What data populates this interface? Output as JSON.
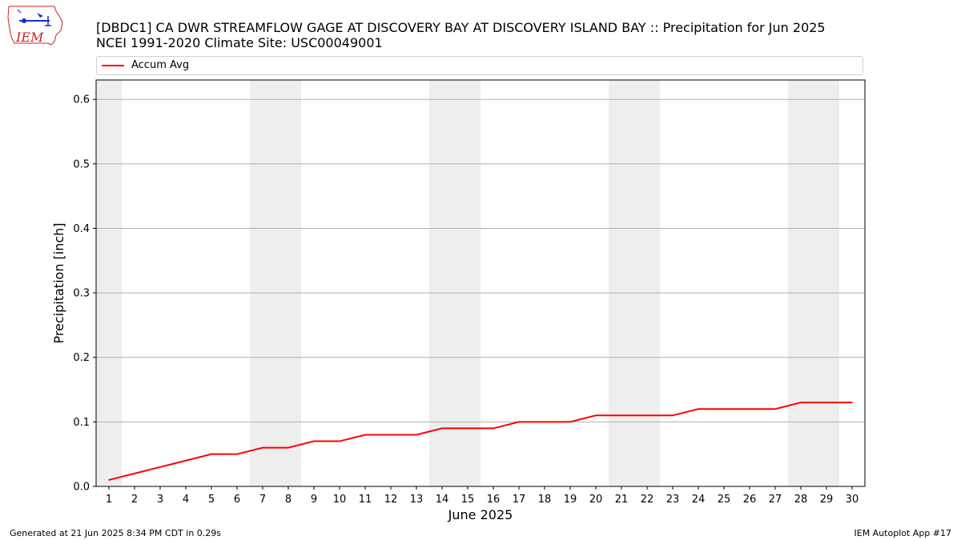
{
  "logo": {
    "text": "IEM",
    "color": "#cc2222",
    "icon": "iowa-state-outline-icon"
  },
  "header": {
    "title": "[DBDC1] CA DWR STREAMFLOW GAGE  AT DISCOVERY BAY AT DISCOVERY ISLAND BAY :: Precipitation for Jun 2025",
    "subtitle": "NCEI 1991-2020 Climate Site: USC00049001"
  },
  "legend": {
    "label": "Accum Avg",
    "color": "#ff0000"
  },
  "chart_data": {
    "type": "line",
    "xlabel": "June 2025",
    "ylabel": "Precipitation [inch]",
    "xlim": [
      0.5,
      30.5
    ],
    "ylim": [
      0,
      0.63
    ],
    "x_ticks": [
      1,
      2,
      3,
      4,
      5,
      6,
      7,
      8,
      9,
      10,
      11,
      12,
      13,
      14,
      15,
      16,
      17,
      18,
      19,
      20,
      21,
      22,
      23,
      24,
      25,
      26,
      27,
      28,
      29,
      30
    ],
    "y_ticks": [
      0.0,
      0.1,
      0.2,
      0.3,
      0.4,
      0.5,
      0.6
    ],
    "y_tick_labels": [
      "0.0",
      "0.1",
      "0.2",
      "0.3",
      "0.4",
      "0.5",
      "0.6"
    ],
    "grid": "horizontal",
    "weekend_shading": [
      [
        0.5,
        1.5
      ],
      [
        6.5,
        8.5
      ],
      [
        13.5,
        15.5
      ],
      [
        20.5,
        22.5
      ],
      [
        27.5,
        29.5
      ]
    ],
    "shading_color": "#eeeeee",
    "series": [
      {
        "name": "Accum Avg",
        "color": "#ff0000",
        "x": [
          1,
          2,
          3,
          4,
          5,
          6,
          7,
          8,
          9,
          10,
          11,
          12,
          13,
          14,
          15,
          16,
          17,
          18,
          19,
          20,
          21,
          22,
          23,
          24,
          25,
          26,
          27,
          28,
          29,
          30
        ],
        "y": [
          0.01,
          0.02,
          0.03,
          0.04,
          0.05,
          0.05,
          0.06,
          0.06,
          0.07,
          0.07,
          0.08,
          0.08,
          0.08,
          0.09,
          0.09,
          0.09,
          0.1,
          0.1,
          0.1,
          0.11,
          0.11,
          0.11,
          0.11,
          0.12,
          0.12,
          0.12,
          0.12,
          0.13,
          0.13,
          0.13
        ]
      }
    ]
  },
  "footer": {
    "left": "Generated at 21 Jun 2025 8:34 PM CDT in 0.29s",
    "right": "IEM Autoplot App #17"
  }
}
